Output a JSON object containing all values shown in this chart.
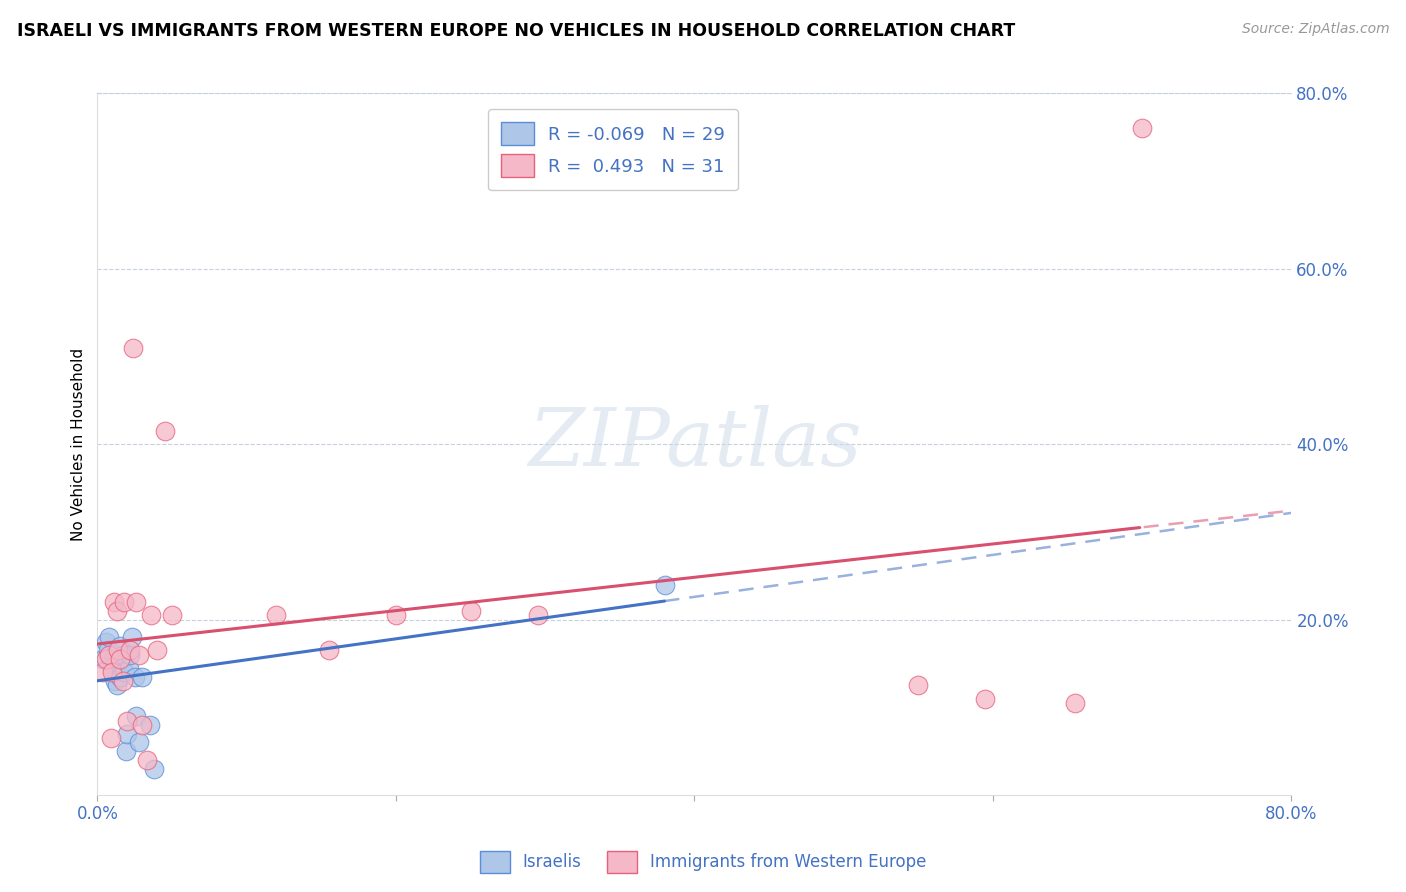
{
  "title": "ISRAELI VS IMMIGRANTS FROM WESTERN EUROPE NO VEHICLES IN HOUSEHOLD CORRELATION CHART",
  "source": "Source: ZipAtlas.com",
  "ylabel": "No Vehicles in Household",
  "xlim": [
    0.0,
    0.8
  ],
  "ylim": [
    0.0,
    0.8
  ],
  "legend_r_israeli": "-0.069",
  "legend_n_israeli": "29",
  "legend_r_immigrants": "0.493",
  "legend_n_immigrants": "31",
  "color_israeli_fill": "#aec6e8",
  "color_immigrants_fill": "#f4b8c8",
  "color_israeli_edge": "#5b8dd9",
  "color_immigrants_edge": "#e8607a",
  "color_israeli_line": "#4472c4",
  "color_immigrants_line": "#d94f6e",
  "watermark_text": "ZIPatlas",
  "israelis_x": [
    0.004,
    0.006,
    0.007,
    0.008,
    0.009,
    0.01,
    0.011,
    0.012,
    0.012,
    0.013,
    0.013,
    0.014,
    0.015,
    0.015,
    0.016,
    0.017,
    0.018,
    0.019,
    0.02,
    0.021,
    0.022,
    0.023,
    0.025,
    0.026,
    0.028,
    0.03,
    0.035,
    0.038,
    0.38
  ],
  "israelis_y": [
    0.155,
    0.175,
    0.165,
    0.18,
    0.15,
    0.145,
    0.16,
    0.15,
    0.13,
    0.155,
    0.125,
    0.16,
    0.17,
    0.135,
    0.155,
    0.16,
    0.14,
    0.05,
    0.07,
    0.145,
    0.16,
    0.18,
    0.135,
    0.09,
    0.06,
    0.135,
    0.08,
    0.03,
    0.24
  ],
  "immigrants_x": [
    0.004,
    0.006,
    0.008,
    0.009,
    0.01,
    0.011,
    0.013,
    0.014,
    0.015,
    0.017,
    0.018,
    0.02,
    0.022,
    0.024,
    0.026,
    0.028,
    0.03,
    0.033,
    0.036,
    0.04,
    0.045,
    0.05,
    0.12,
    0.155,
    0.2,
    0.25,
    0.295,
    0.55,
    0.595,
    0.655,
    0.7
  ],
  "immigrants_y": [
    0.14,
    0.155,
    0.16,
    0.065,
    0.14,
    0.22,
    0.21,
    0.165,
    0.155,
    0.13,
    0.22,
    0.085,
    0.165,
    0.51,
    0.22,
    0.16,
    0.08,
    0.04,
    0.205,
    0.165,
    0.415,
    0.205,
    0.205,
    0.165,
    0.205,
    0.21,
    0.205,
    0.125,
    0.11,
    0.105,
    0.76
  ],
  "isr_line_x0": 0.0,
  "isr_line_x1": 0.8,
  "imm_line_x0": 0.0,
  "imm_line_x1": 0.8,
  "ytick_vals": [
    0.2,
    0.4,
    0.6,
    0.8
  ],
  "ytick_labels": [
    "20.0%",
    "40.0%",
    "60.0%",
    "80.0%"
  ]
}
